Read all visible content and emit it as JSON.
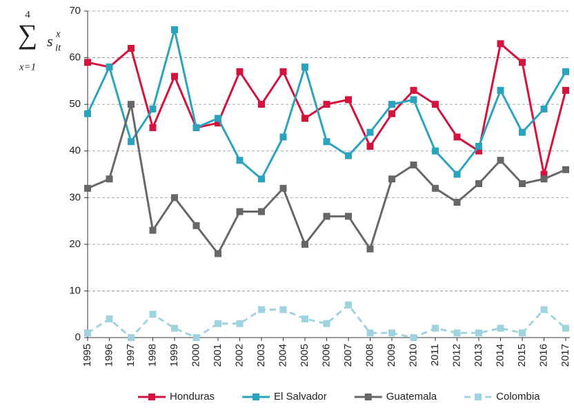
{
  "chart_data": {
    "type": "line",
    "y_label": {
      "upper": "4",
      "symbol": "∑",
      "lower": "x=1",
      "base": "s",
      "sub": "it",
      "sup": "x"
    },
    "categories": [
      "1995",
      "1996",
      "1997",
      "1998",
      "1999",
      "2000",
      "2001",
      "2002",
      "2003",
      "2004",
      "2005",
      "2006",
      "2007",
      "2008",
      "2009",
      "2010",
      "2011",
      "2012",
      "2013",
      "2014",
      "2015",
      "2016",
      "2017"
    ],
    "series": [
      {
        "name": "Honduras",
        "color": "#d3123e",
        "dashed": false,
        "values": [
          59,
          58,
          62,
          45,
          56,
          45,
          46,
          57,
          50,
          57,
          47,
          50,
          51,
          41,
          48,
          53,
          50,
          43,
          40,
          63,
          59,
          35,
          53
        ]
      },
      {
        "name": "El Salvador",
        "color": "#2ba3bd",
        "dashed": false,
        "values": [
          48,
          58,
          42,
          49,
          66,
          45,
          47,
          38,
          34,
          43,
          58,
          42,
          39,
          44,
          50,
          51,
          40,
          35,
          41,
          53,
          44,
          49,
          57
        ]
      },
      {
        "name": "Guatemala",
        "color": "#676767",
        "dashed": false,
        "values": [
          32,
          34,
          50,
          23,
          30,
          24,
          18,
          27,
          27,
          32,
          20,
          26,
          26,
          19,
          34,
          37,
          32,
          29,
          33,
          38,
          33,
          34,
          36
        ]
      },
      {
        "name": "Colombia",
        "color": "#9fd3e0",
        "dashed": true,
        "values": [
          1,
          4,
          0,
          5,
          2,
          0,
          3,
          3,
          6,
          6,
          4,
          3,
          7,
          1,
          1,
          0,
          2,
          1,
          1,
          2,
          1,
          6,
          2
        ]
      }
    ],
    "ylim": [
      0,
      70
    ],
    "yticks": [
      0,
      10,
      20,
      30,
      40,
      50,
      60,
      70
    ],
    "grid": true
  }
}
